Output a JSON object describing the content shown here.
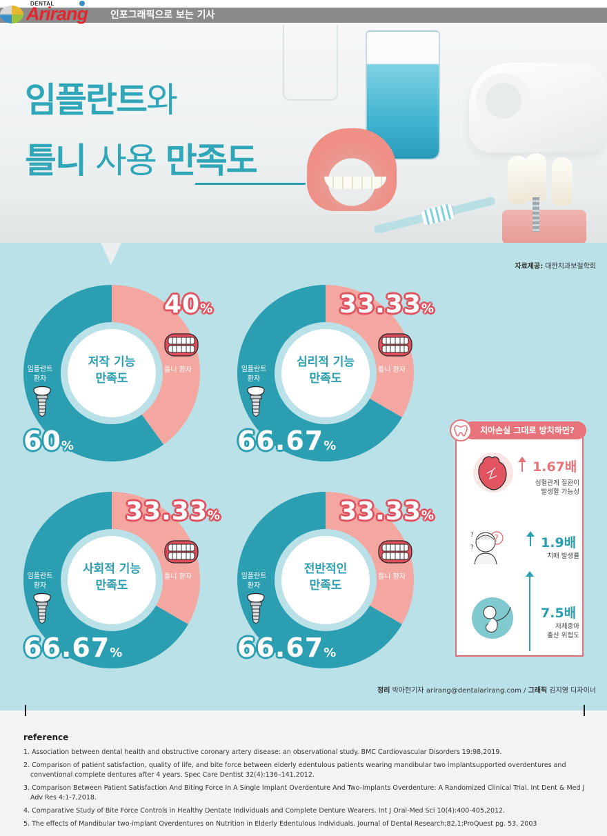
{
  "header": {
    "brand_small": "DENTAL",
    "brand": "Arirang",
    "caption": "인포그래픽으로 보는 기사"
  },
  "title": {
    "line1_bold": "임플란트",
    "line1_light": "와",
    "line2_bold": "틀니",
    "line2_light": " 사용 ",
    "line2_underlined": "만족도"
  },
  "source": {
    "label": "자료제공:",
    "value": "대한치과보철학회"
  },
  "labels": {
    "denture_patient": "틀니 환자",
    "implant_patient": "임플란트\n환자"
  },
  "chart_data": [
    {
      "type": "pie",
      "title": "저작 기능\n만족도",
      "categories": [
        "틀니 환자",
        "임플란트 환자"
      ],
      "values": [
        40,
        60
      ],
      "value_labels": [
        "40",
        "60"
      ],
      "colors": [
        "#f4a7a0",
        "#2b9fb1"
      ]
    },
    {
      "type": "pie",
      "title": "심리적 기능\n만족도",
      "categories": [
        "틀니 환자",
        "임플란트 환자"
      ],
      "values": [
        33.33,
        66.67
      ],
      "value_labels": [
        "33.33",
        "66.67"
      ],
      "colors": [
        "#f4a7a0",
        "#2b9fb1"
      ]
    },
    {
      "type": "pie",
      "title": "사회적 기능\n만족도",
      "categories": [
        "틀니 환자",
        "임플란트 환자"
      ],
      "values": [
        33.33,
        66.67
      ],
      "value_labels": [
        "33.33",
        "66.67"
      ],
      "colors": [
        "#f4a7a0",
        "#2b9fb1"
      ]
    },
    {
      "type": "pie",
      "title": "전반적인\n만족도",
      "categories": [
        "틀니 환자",
        "임플란트 환자"
      ],
      "values": [
        33.33,
        66.67
      ],
      "value_labels": [
        "33.33",
        "66.67"
      ],
      "colors": [
        "#f4a7a0",
        "#2b9fb1"
      ]
    }
  ],
  "percent_sign": "%",
  "risk": {
    "title": "치아손실 그대로 방치하면?",
    "items": [
      {
        "value": "1.67배",
        "desc": "심혈관계 질환이\n발생할 가능성",
        "icon": "heart-icon",
        "color": "#e8737a"
      },
      {
        "value": "1.9배",
        "desc": "치매 발생률",
        "icon": "elderly-confused-icon",
        "color": "#2b9fb1"
      },
      {
        "value": "7.5배",
        "desc": "저체중아\n출산 위험도",
        "icon": "fetus-icon",
        "color": "#2b9fb1"
      }
    ]
  },
  "credits": {
    "label1": "정리",
    "text1": "박아현기자 arirang@dentalarirang.com /",
    "label2": "그래픽",
    "text2": "김지영 디자이너"
  },
  "references": {
    "title": "reference",
    "items": [
      "1. Association between dental health and obstructive coronary artery disease: an observational study. BMC Cardiovascular Disorders 19:98,2019.",
      "2. Comparison of patient satisfaction, quality of life, and bite force between elderly edentulous patients wearing mandibular two implantsupported overdentures and conventional complete dentures after 4 years. Spec Care Dentist 32(4):136–141,2012.",
      "3. Comparison Between Patient Satisfaction And Biting Force In A Single Implant Overdenture And Two-Implants Overdenture: A Randomized Clinical Trial. Int Dent & Med J Adv Res 4:1-7,2018.",
      "4. Comparative Study of Bite Force Controls in Healthy Dentate Individuals and Complete Denture Wearers. Int J Oral-Med Sci 10(4):400-405,2012.",
      "5. The effects of Mandibular two-implant Overdentures on Nutrition in Elderly Edentulous Individuals. Journal of Dental Research;82,1;ProQuest pg. 53, 2003"
    ]
  }
}
